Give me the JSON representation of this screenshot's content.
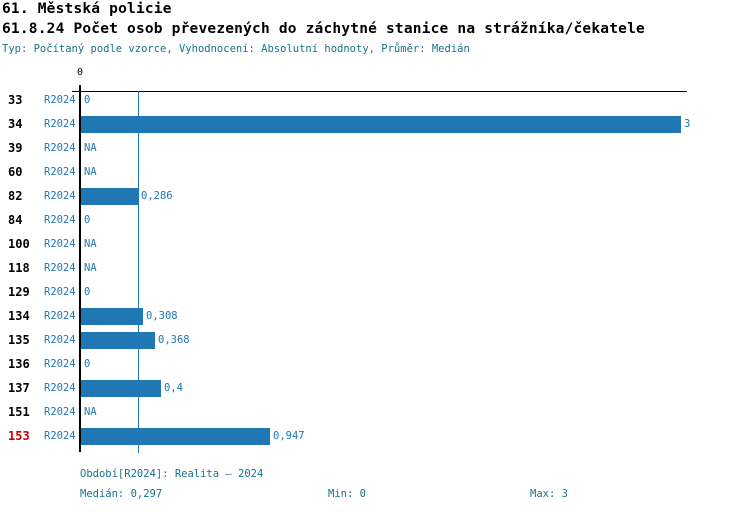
{
  "header": {
    "title_line1": "61. Městská policie",
    "title_line2": "61.8.24 Počet osob převezených do záchytné stanice na strážníka/čekatele",
    "meta_line": "Typ: Počítaný podle vzorce, Vyhodnocení: Absolutní hodnoty, Průměr: Medián"
  },
  "colors": {
    "bar_blue": "#1F77B4",
    "label_blue": "#1F77B4",
    "footer_teal": "#17728F",
    "highlight_red": "#CC0000",
    "axis_black": "#000000"
  },
  "chart_data": {
    "type": "bar",
    "orientation": "horizontal",
    "series_name": "R2024",
    "axis_zero_tick_label": "0",
    "xlim": [
      0,
      3.03
    ],
    "median_value": 0.297,
    "grid": false,
    "categories": [
      "33",
      "34",
      "39",
      "60",
      "82",
      "84",
      "100",
      "118",
      "129",
      "134",
      "135",
      "136",
      "137",
      "151",
      "153"
    ],
    "rows": [
      {
        "id": "33",
        "value": 0,
        "value_label": "0",
        "highlight": false
      },
      {
        "id": "34",
        "value": 3,
        "value_label": "3",
        "highlight": false
      },
      {
        "id": "39",
        "value": null,
        "value_label": "NA",
        "highlight": false
      },
      {
        "id": "60",
        "value": null,
        "value_label": "NA",
        "highlight": false
      },
      {
        "id": "82",
        "value": 0.286,
        "value_label": "0,286",
        "highlight": false
      },
      {
        "id": "84",
        "value": 0,
        "value_label": "0",
        "highlight": false
      },
      {
        "id": "100",
        "value": null,
        "value_label": "NA",
        "highlight": false
      },
      {
        "id": "118",
        "value": null,
        "value_label": "NA",
        "highlight": false
      },
      {
        "id": "129",
        "value": 0,
        "value_label": "0",
        "highlight": false
      },
      {
        "id": "134",
        "value": 0.308,
        "value_label": "0,308",
        "highlight": false
      },
      {
        "id": "135",
        "value": 0.368,
        "value_label": "0,368",
        "highlight": false
      },
      {
        "id": "136",
        "value": 0,
        "value_label": "0",
        "highlight": false
      },
      {
        "id": "137",
        "value": 0.4,
        "value_label": "0,4",
        "highlight": false
      },
      {
        "id": "151",
        "value": null,
        "value_label": "NA",
        "highlight": false
      },
      {
        "id": "153",
        "value": 0.947,
        "value_label": "0,947",
        "highlight": true
      }
    ]
  },
  "footer": {
    "period": "Období[R2024]: Realita – 2024",
    "median": "Medián: 0,297",
    "min": "Min: 0",
    "max": "Max: 3"
  }
}
